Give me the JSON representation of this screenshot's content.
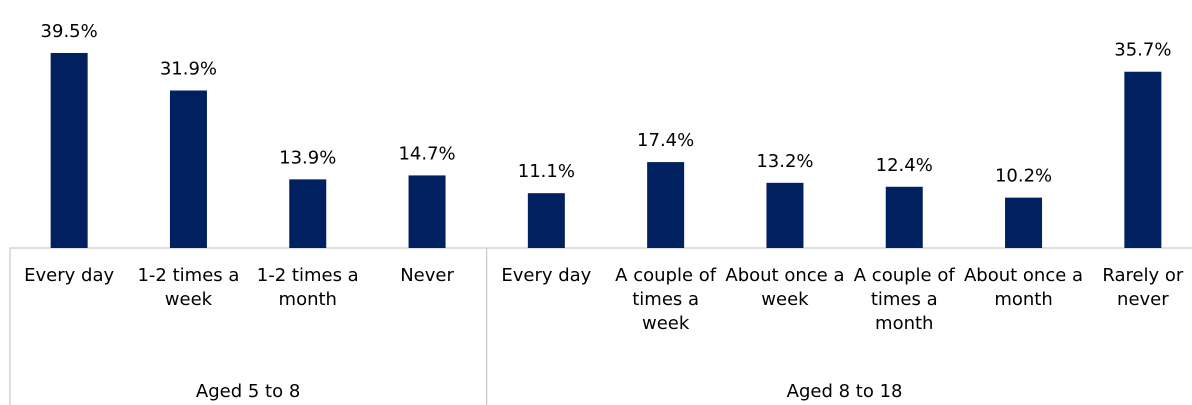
{
  "chart_data": {
    "type": "bar",
    "color": "#002060",
    "ylim": [
      0,
      40
    ],
    "groups": [
      {
        "name": "Aged 5 to 8",
        "categories": [
          "Every day",
          "1-2 times a week",
          "1-2 times a month",
          "Never"
        ],
        "values": [
          39.5,
          31.9,
          13.9,
          14.7
        ],
        "value_labels": [
          "39.5%",
          "31.9%",
          "13.9%",
          "14.7%"
        ]
      },
      {
        "name": "Aged 8 to 18",
        "categories": [
          "Every day",
          "A couple of times a week",
          "About once a week",
          "A couple of times a month",
          "About once a month",
          "Rarely or never"
        ],
        "values": [
          11.1,
          17.4,
          13.2,
          12.4,
          10.2,
          35.7
        ],
        "value_labels": [
          "11.1%",
          "17.4%",
          "13.2%",
          "12.4%",
          "10.2%",
          "35.7%"
        ]
      }
    ]
  }
}
